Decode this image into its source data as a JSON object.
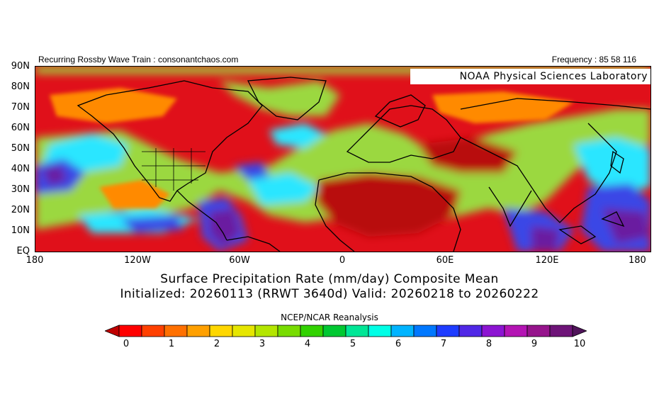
{
  "header": {
    "left": "Recurring Rossby Wave Train : consonantchaos.com",
    "right": "Frequency : 85 58 116"
  },
  "map": {
    "lab_label": "NOAA Physical Sciences Laboratory",
    "lat_labels": [
      "90N",
      "80N",
      "70N",
      "60N",
      "50N",
      "40N",
      "30N",
      "20N",
      "10N",
      "EQ"
    ],
    "lon_labels": [
      "180",
      "120W",
      "60W",
      "0",
      "60E",
      "120E",
      "180"
    ],
    "colors": {
      "dry": "#e0101a",
      "very_dry": "#b80c10",
      "light": "#ff8a00",
      "moderate": "#9bd840",
      "wet": "#2be6ff",
      "heavy": "#3a46e6",
      "very_heavy": "#6a1ea0",
      "coast": "#000000"
    }
  },
  "title": {
    "line1": "Surface Precipitation Rate (mm/day) Composite Mean",
    "line2": "Initialized: 20260113 (RRWT 3640d) Valid: 20260218 to 20260222"
  },
  "source": "NCEP/NCAR Reanalysis",
  "colorbar": {
    "colors": [
      "#c00000",
      "#ff0000",
      "#ff4000",
      "#ff7000",
      "#ffa000",
      "#ffd700",
      "#e6e600",
      "#b4e600",
      "#78dc00",
      "#32d200",
      "#00c832",
      "#00e696",
      "#00ffe6",
      "#00b4ff",
      "#0078ff",
      "#1e3cff",
      "#5028e6",
      "#8c14d2",
      "#b414b4",
      "#96148c",
      "#6e1478",
      "#50145a"
    ],
    "labels": [
      "0",
      "1",
      "2",
      "3",
      "4",
      "5",
      "6",
      "7",
      "8",
      "9",
      "10"
    ]
  }
}
